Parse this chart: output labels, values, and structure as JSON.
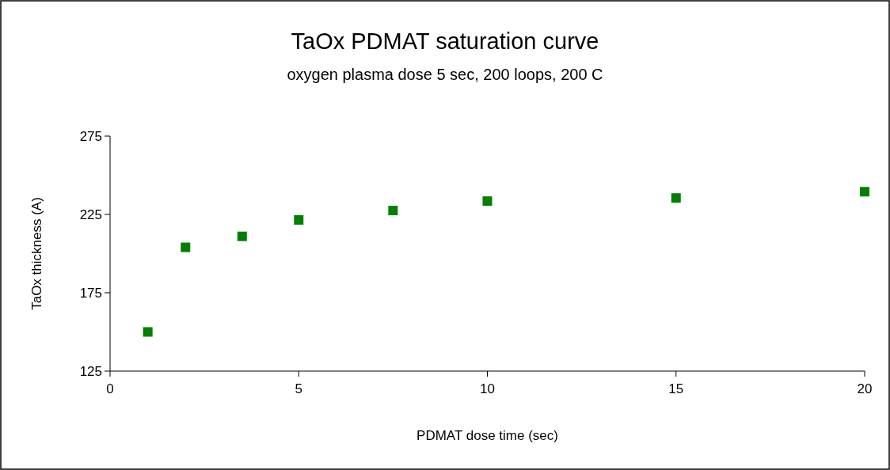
{
  "chart_data": {
    "type": "scatter",
    "title": "TaOx PDMAT saturation curve",
    "subtitle": "oxygen plasma dose 5 sec,  200 loops, 200 C",
    "xlabel": "PDMAT dose time (sec)",
    "ylabel": "TaOx thickness (A)",
    "x": [
      1,
      2,
      3.5,
      5,
      7.5,
      10,
      15,
      20
    ],
    "series": [
      {
        "color": "#008000",
        "values": [
          150,
          204,
          211,
          221.5,
          227.5,
          233.5,
          235.5,
          239.5
        ]
      }
    ],
    "xlim": [
      0,
      20
    ],
    "xticks": [
      0,
      5,
      10,
      15,
      20
    ],
    "ylim": [
      125,
      275
    ],
    "yticks": [
      125,
      175,
      225,
      275
    ],
    "marker": "square",
    "grid": false
  }
}
